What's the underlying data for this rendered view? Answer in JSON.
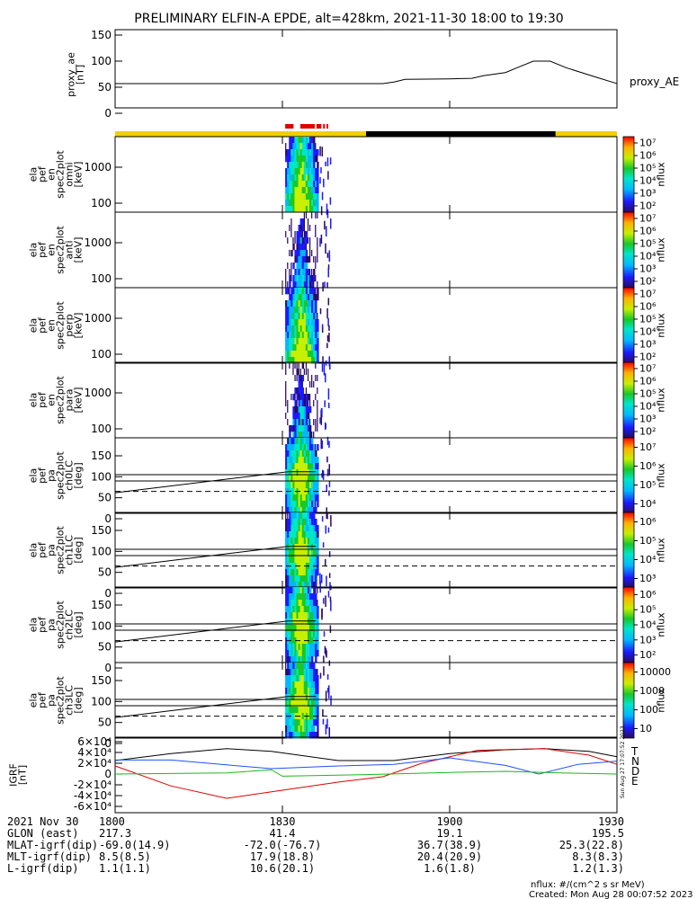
{
  "title": "PRELIMINARY ELFIN-A EPDE, alt=428km, 2021-11-30 18:00 to 19:30",
  "colors": {
    "sunlit": "#f2cf00",
    "eclipse": "#000000",
    "science_zone": "#e00000",
    "bx": "#e00000",
    "by": "#2050ff",
    "bz": "#1cb81c",
    "bt": "#000000"
  },
  "chart_data": [
    {
      "type": "line",
      "id": "proxy_ae",
      "ylabel_lines": [
        "proxy_ae",
        "[nT]"
      ],
      "ylim": [
        0,
        150
      ],
      "yticks": [
        "0",
        "50",
        "100",
        "150"
      ],
      "series": [
        {
          "name": "proxy_AE",
          "x": [
            "18:00",
            "18:30",
            "18:45",
            "18:48",
            "18:50",
            "18:52",
            "19:00",
            "19:04",
            "19:06",
            "19:10",
            "19:12",
            "19:15",
            "19:18",
            "19:21",
            "19:26",
            "19:30"
          ],
          "y": [
            57,
            57,
            57,
            57,
            60,
            65,
            66,
            67,
            72,
            78,
            87,
            100,
            100,
            87,
            70,
            57
          ]
        }
      ]
    },
    {
      "type": "heatmap",
      "id": "ela_pef_en_spec2plot_omni",
      "ylabel_lines": [
        "ela",
        "pef",
        "en",
        "spec2plot",
        "omni",
        "[keV]"
      ],
      "yscale": "log",
      "yticks": [
        "100",
        "1000"
      ],
      "cbar_label": "nflux",
      "cbar_ticks": [
        "10²",
        "10³",
        "10⁴",
        "10⁵",
        "10⁶",
        "10⁷"
      ]
    },
    {
      "type": "heatmap",
      "id": "ela_pef_en_spec2plot_anti",
      "ylabel_lines": [
        "ela",
        "pef",
        "en",
        "spec2plot",
        "anti",
        "[keV]"
      ],
      "yscale": "log",
      "yticks": [
        "100",
        "1000"
      ],
      "cbar_label": "nflux",
      "cbar_ticks": [
        "10²",
        "10³",
        "10⁴",
        "10⁵",
        "10⁶",
        "10⁷"
      ]
    },
    {
      "type": "heatmap",
      "id": "ela_pef_en_spec2plot_perp",
      "ylabel_lines": [
        "ela",
        "pef",
        "en",
        "spec2plot",
        "perp",
        "[keV]"
      ],
      "yscale": "log",
      "yticks": [
        "100",
        "1000"
      ],
      "cbar_label": "nflux",
      "cbar_ticks": [
        "10²",
        "10³",
        "10⁴",
        "10⁵",
        "10⁶",
        "10⁷"
      ]
    },
    {
      "type": "heatmap",
      "id": "ela_pef_en_spec2plot_para",
      "ylabel_lines": [
        "ela",
        "pef",
        "en",
        "spec2plot",
        "para",
        "[keV]"
      ],
      "yscale": "log",
      "yticks": [
        "100",
        "1000"
      ],
      "cbar_label": "nflux",
      "cbar_ticks": [
        "10²",
        "10³",
        "10⁴",
        "10⁵",
        "10⁶",
        "10⁷"
      ]
    },
    {
      "type": "heatmap",
      "id": "ela_pef_pa_spec2plot_ch0LC",
      "ylabel_lines": [
        "ela",
        "pef",
        "pa",
        "spec2plot",
        "ch0LC",
        "[deg]"
      ],
      "ylim": [
        0,
        180
      ],
      "yticks": [
        "0",
        "50",
        "100",
        "150"
      ],
      "cbar_label": "nflux",
      "cbar_ticks": [
        "10⁴",
        "10⁵",
        "10⁶",
        "10⁷"
      ]
    },
    {
      "type": "heatmap",
      "id": "ela_pef_pa_spec2plot_ch1LC",
      "ylabel_lines": [
        "ela",
        "pef",
        "pa",
        "spec2plot",
        "ch1LC",
        "[deg]"
      ],
      "ylim": [
        0,
        180
      ],
      "yticks": [
        "0",
        "50",
        "100",
        "150"
      ],
      "cbar_label": "nflux",
      "cbar_ticks": [
        "10³",
        "10⁴",
        "10⁵",
        "10⁶"
      ]
    },
    {
      "type": "heatmap",
      "id": "ela_pef_pa_spec2plot_ch2LC",
      "ylabel_lines": [
        "ela",
        "pef",
        "pa",
        "spec2plot",
        "ch2LC",
        "[deg]"
      ],
      "ylim": [
        0,
        180
      ],
      "yticks": [
        "0",
        "50",
        "100",
        "150"
      ],
      "cbar_label": "nflux",
      "cbar_ticks": [
        "10²",
        "10³",
        "10⁴",
        "10⁵",
        "10⁶"
      ]
    },
    {
      "type": "heatmap",
      "id": "ela_pef_pa_spec2plot_ch3LC",
      "ylabel_lines": [
        "ela",
        "pef",
        "pa",
        "spec2plot",
        "ch3LC",
        "[deg]"
      ],
      "ylim": [
        0,
        180
      ],
      "yticks": [
        "0",
        "50",
        "100",
        "150"
      ],
      "cbar_label": "nflux",
      "cbar_ticks": [
        "10",
        "100",
        "1000",
        "10000"
      ]
    },
    {
      "type": "line",
      "id": "ela_b_ndw",
      "ylabel_lines": [
        "IGRF",
        "[nT]"
      ],
      "ylim": [
        -70000,
        70000
      ],
      "yticks": [
        "6×10⁴",
        "4×10⁴",
        "2×10⁴",
        "0",
        "-2×10⁴",
        "-4×10⁴",
        "-6×10⁴"
      ],
      "legend": [
        "T",
        "N",
        "D",
        "E"
      ],
      "series": [
        {
          "name": "T",
          "x": [
            "18:00",
            "18:10",
            "18:20",
            "18:28",
            "18:40",
            "18:50",
            "19:00",
            "19:10",
            "19:17",
            "19:25",
            "19:30"
          ],
          "y": [
            25000,
            38000,
            47000,
            42000,
            25000,
            25000,
            38000,
            45000,
            47000,
            42000,
            32000
          ]
        },
        {
          "name": "N",
          "x": [
            "18:00",
            "18:10",
            "18:20",
            "18:30",
            "18:40",
            "18:48",
            "18:55",
            "19:05",
            "19:17",
            "19:25",
            "19:30"
          ],
          "y": [
            15000,
            -22000,
            -45000,
            -30000,
            -15000,
            -5000,
            20000,
            44000,
            47000,
            35000,
            18000
          ]
        },
        {
          "name": "D",
          "x": [
            "18:00",
            "18:10",
            "18:20",
            "18:28",
            "18:40",
            "18:50",
            "19:00",
            "19:10",
            "19:16",
            "19:23",
            "19:30"
          ],
          "y": [
            26000,
            26000,
            17000,
            10000,
            15000,
            18000,
            30000,
            16000,
            0,
            18000,
            24000
          ]
        },
        {
          "name": "E",
          "x": [
            "18:00",
            "18:20",
            "18:28",
            "18:30",
            "18:45",
            "19:00",
            "19:10",
            "19:20",
            "19:30"
          ],
          "y": [
            0,
            2000,
            8000,
            -4000,
            -1000,
            3000,
            5000,
            2000,
            0
          ]
        }
      ]
    }
  ],
  "status_bar": {
    "segments": [
      {
        "color": "#f2cf00",
        "from": "18:00",
        "to": "18:45"
      },
      {
        "color": "#000000",
        "from": "18:45",
        "to": "19:19"
      },
      {
        "color": "#f2cf00",
        "from": "19:19",
        "to": "19:30"
      }
    ],
    "science_marks": [
      {
        "from": "18:30.5",
        "to": "18:32.0"
      },
      {
        "from": "18:33.2",
        "to": "18:35.8"
      },
      {
        "from": "18:36.1",
        "to": "18:37.0"
      },
      {
        "from": "18:37.3",
        "to": "18:37.6"
      },
      {
        "from": "18:37.9",
        "to": "18:38.2"
      }
    ]
  },
  "footer": {
    "rows": [
      {
        "label": "2021 Nov 30",
        "values": [
          "1800",
          "1830",
          "1900",
          "1930"
        ]
      },
      {
        "label": "GLON (east)",
        "values": [
          "217.3",
          "41.4",
          "19.1",
          "195.5"
        ]
      },
      {
        "label": "MLAT-igrf(dip)",
        "values": [
          "-69.0(14.9)",
          "-72.0(-76.7)",
          "36.7(38.9)",
          "25.3(22.8)"
        ]
      },
      {
        "label": "MLT-igrf(dip)",
        "values": [
          "8.5(8.5)",
          "17.9(18.8)",
          "20.4(20.9)",
          "8.3(8.3)"
        ]
      },
      {
        "label": "L-igrf(dip)",
        "values": [
          "1.1(1.1)",
          "10.6(20.1)",
          "1.6(1.8)",
          "1.2(1.3)"
        ]
      }
    ],
    "units_note": "nflux: #/(cm^2 s sr MeV)",
    "created": "Created: Mon Aug 28 00:07:52 2023",
    "side_stamp": "Sun Aug 27 17:07:52 2023"
  }
}
